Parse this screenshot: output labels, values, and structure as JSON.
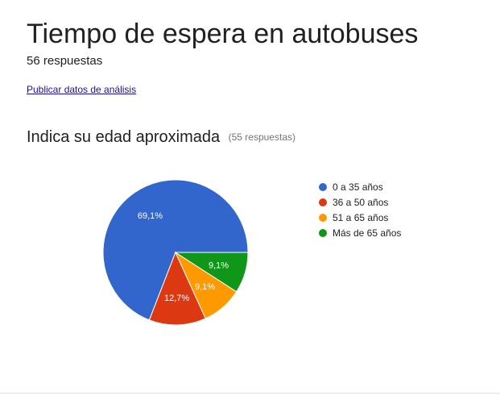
{
  "form": {
    "title": "Tiempo de espera en autobuses",
    "responses": "56 respuestas",
    "publish_link": "Publicar datos de análisis"
  },
  "question": {
    "title": "Indica su edad aproximada",
    "response_count": "(55 respuestas)"
  },
  "chart_data": {
    "type": "pie",
    "categories": [
      "0 a 35 años",
      "36 a 50 años",
      "51 a 65 años",
      "Más de 65 años"
    ],
    "values": [
      69.1,
      12.7,
      9.1,
      9.1
    ],
    "value_labels": [
      "69,1%",
      "12,7%",
      "9,1%",
      "9,1%"
    ],
    "colors": [
      "#3366cc",
      "#dc3912",
      "#ff9900",
      "#109618"
    ],
    "legend_position": "right"
  }
}
